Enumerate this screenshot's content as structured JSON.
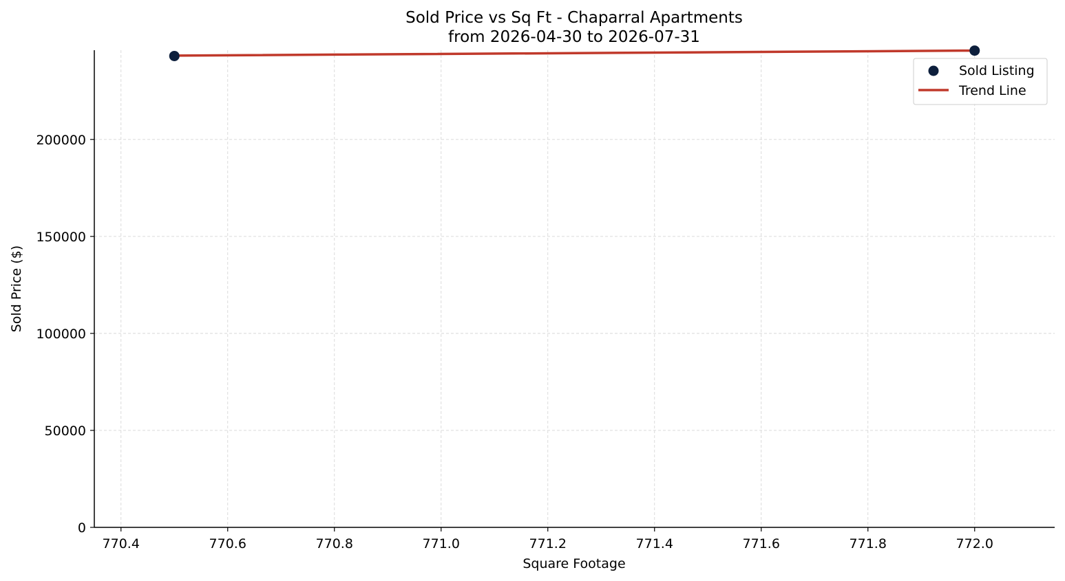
{
  "chart_data": {
    "type": "scatter",
    "title": "Sold Price vs Sq Ft - Chaparral Apartments",
    "subtitle": "from 2026-04-30 to 2026-07-31",
    "xlabel": "Square Footage",
    "ylabel": "Sold Price ($)",
    "xlim": [
      770.35,
      772.15
    ],
    "ylim": [
      0,
      246000
    ],
    "x_ticks": [
      770.4,
      770.6,
      770.8,
      771.0,
      771.2,
      771.4,
      771.6,
      771.8,
      772.0
    ],
    "x_tick_labels": [
      "770.4",
      "770.6",
      "770.8",
      "771.0",
      "771.2",
      "771.4",
      "771.6",
      "771.8",
      "772.0"
    ],
    "y_ticks": [
      0,
      50000,
      100000,
      150000,
      200000
    ],
    "y_tick_labels": [
      "0",
      "50000",
      "100000",
      "150000",
      "200000"
    ],
    "grid": true,
    "legend_position": "top-right",
    "series": [
      {
        "name": "Sold Listing",
        "kind": "scatter",
        "color": "#0d1f3c",
        "points": [
          {
            "x": 770.5,
            "y": 243000
          },
          {
            "x": 772.0,
            "y": 245800
          }
        ]
      },
      {
        "name": "Trend Line",
        "kind": "line",
        "color": "#c0392b",
        "points": [
          {
            "x": 770.5,
            "y": 243200
          },
          {
            "x": 772.0,
            "y": 245800
          }
        ]
      }
    ]
  }
}
